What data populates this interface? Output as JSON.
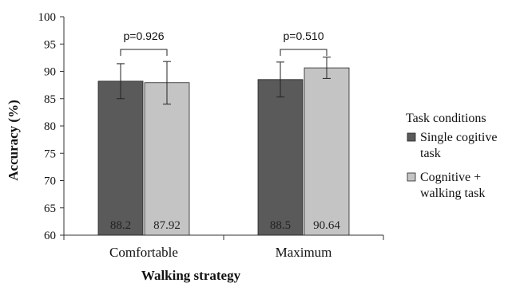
{
  "chart_data": {
    "type": "bar",
    "xlabel": "Walking strategy",
    "ylabel": "Accuracy (%)",
    "ylim": [
      60,
      100
    ],
    "yticks": [
      60,
      65,
      70,
      75,
      80,
      85,
      90,
      95,
      100
    ],
    "categories": [
      "Comfortable",
      "Maximum"
    ],
    "series": [
      {
        "name": "Single cogitive task",
        "color": "#5a5a5a",
        "values": [
          88.2,
          88.5
        ],
        "value_labels": [
          "88.2",
          "88.5"
        ],
        "error_low": [
          85.0,
          85.3
        ],
        "error_high": [
          91.4,
          91.7
        ]
      },
      {
        "name": "Cognitive + walking task",
        "color": "#c4c4c4",
        "values": [
          87.92,
          90.64
        ],
        "value_labels": [
          "87.92",
          "90.64"
        ],
        "error_low": [
          84.0,
          88.7
        ],
        "error_high": [
          91.8,
          92.6
        ]
      }
    ],
    "annotations": [
      "p=0.926",
      "p=0.510"
    ],
    "legend": {
      "title": "Task conditions",
      "placement": "right",
      "entries": [
        [
          "Single cogitive",
          "task"
        ],
        [
          "Cognitive +",
          "walking task"
        ]
      ]
    },
    "grid": false
  }
}
